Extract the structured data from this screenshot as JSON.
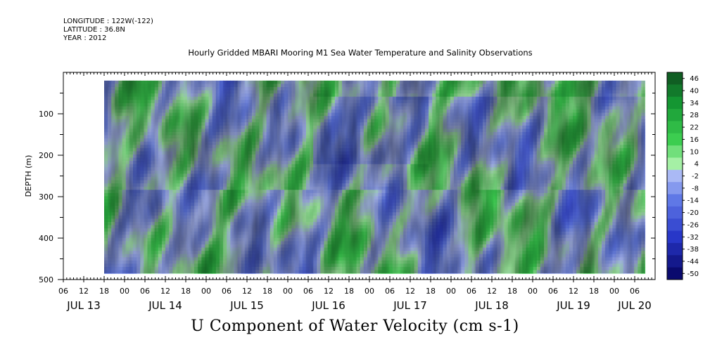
{
  "header": {
    "longitude": "LONGITUDE : 122W(-122)",
    "latitude": "LATITUDE : 36.8N",
    "year": "YEAR : 2012"
  },
  "chart_data": {
    "type": "heatmap",
    "title": "Hourly Gridded MBARI Mooring M1 Sea Water Temperature and Salinity Observations",
    "xlabel": "U Component of Water Velocity (cm s-1)",
    "ylabel": "DEPTH (m)",
    "yticks": [
      "100",
      "200",
      "300",
      "400",
      "500"
    ],
    "ylim": [
      0,
      500
    ],
    "y_inverted": true,
    "xlim_hours": [
      0,
      174
    ],
    "x_hour_ticks": [
      "06",
      "12",
      "18",
      "00",
      "06",
      "12",
      "18",
      "00",
      "06",
      "12",
      "18",
      "00",
      "06",
      "12",
      "18",
      "00",
      "06",
      "12",
      "18",
      "00",
      "06",
      "12",
      "18",
      "00",
      "06",
      "12",
      "18",
      "00",
      "06"
    ],
    "x_date_labels": [
      "JUL 13",
      "JUL 14",
      "JUL 15",
      "JUL 16",
      "JUL 17",
      "JUL 18",
      "JUL 19",
      "JUL 20"
    ],
    "colorbar_labels": [
      "46",
      "40",
      "34",
      "28",
      "22",
      "16",
      "10",
      "4",
      "-2",
      "-8",
      "-14",
      "-20",
      "-26",
      "-32",
      "-38",
      "-44",
      "-50"
    ],
    "value_range": [
      -50,
      50
    ],
    "colors": {
      "negative": "#3a3ab8",
      "zero": "#a8b8f0",
      "positive": "#1ea83a"
    }
  }
}
